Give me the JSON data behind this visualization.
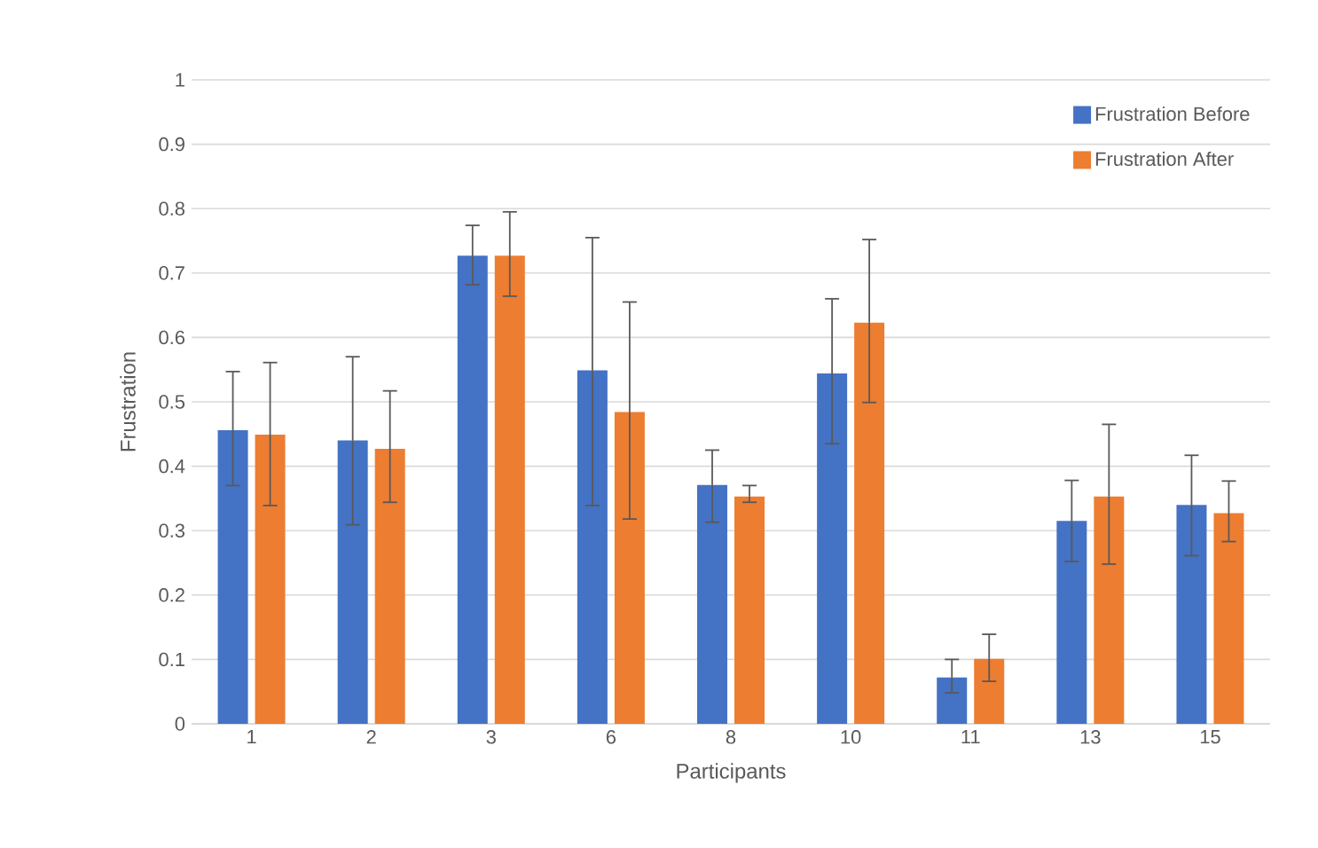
{
  "chart_data": {
    "type": "bar",
    "xlabel": "Participants",
    "ylabel": "Frustration",
    "categories": [
      "1",
      "2",
      "3",
      "6",
      "8",
      "10",
      "11",
      "13",
      "15"
    ],
    "series": [
      {
        "name": "Frustration Before",
        "color": "#4472c4",
        "values": [
          0.456,
          0.44,
          0.727,
          0.549,
          0.371,
          0.544,
          0.072,
          0.315,
          0.34
        ],
        "errors": [
          [
            0.37,
            0.547
          ],
          [
            0.309,
            0.57
          ],
          [
            0.682,
            0.774
          ],
          [
            0.339,
            0.755
          ],
          [
            0.313,
            0.425
          ],
          [
            0.435,
            0.66
          ],
          [
            0.048,
            0.1
          ],
          [
            0.252,
            0.378
          ],
          [
            0.261,
            0.417
          ]
        ]
      },
      {
        "name": "Frustration After",
        "color": "#ed7d31",
        "values": [
          0.449,
          0.427,
          0.727,
          0.484,
          0.353,
          0.623,
          0.101,
          0.353,
          0.327
        ],
        "errors": [
          [
            0.339,
            0.561
          ],
          [
            0.344,
            0.517
          ],
          [
            0.664,
            0.795
          ],
          [
            0.318,
            0.655
          ],
          [
            0.344,
            0.37
          ],
          [
            0.499,
            0.752
          ],
          [
            0.066,
            0.139
          ],
          [
            0.248,
            0.465
          ],
          [
            0.283,
            0.377
          ]
        ]
      }
    ],
    "ylim": [
      0,
      1
    ],
    "yticks": [
      0,
      0.1,
      0.2,
      0.3,
      0.4,
      0.5,
      0.6,
      0.7,
      0.8,
      0.9,
      1
    ],
    "grid": "y",
    "legend": "top right"
  }
}
